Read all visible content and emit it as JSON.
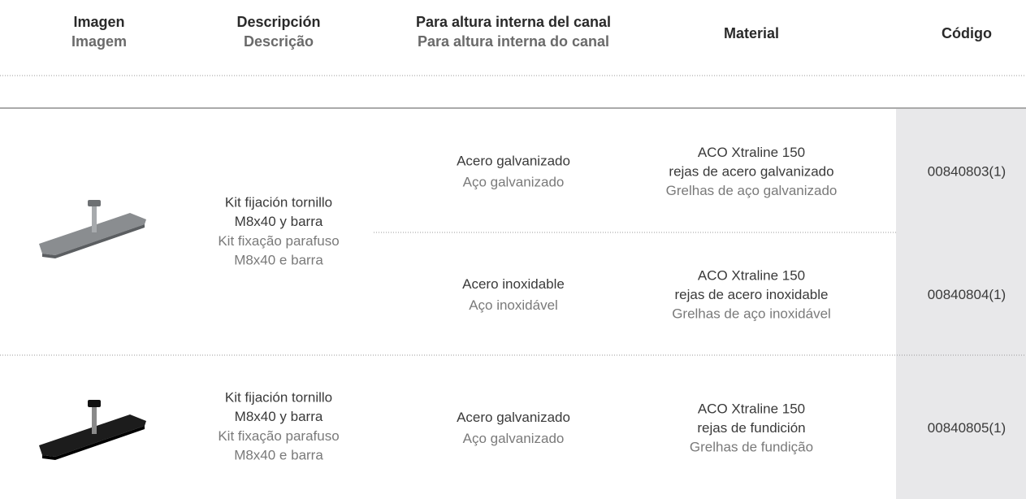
{
  "header": [
    {
      "es": "Imagen",
      "pt": "Imagem"
    },
    {
      "es": "Descripción",
      "pt": "Descrição"
    },
    {
      "es": "Para altura interna del canal",
      "pt": "Para altura interna do canal"
    },
    {
      "es": "Material"
    },
    {
      "es": "Código"
    }
  ],
  "rows": [
    {
      "description": {
        "es": [
          "Kit fijación tornillo",
          "M8x40 y barra"
        ],
        "pt": [
          "Kit fixação parafuso",
          "M8x40 e barra"
        ]
      },
      "items": [
        {
          "height": {
            "es": "Acero galvanizado",
            "pt": "Aço galvanizado"
          },
          "material": {
            "es": [
              "ACO Xtraline 150",
              "rejas de acero galvanizado"
            ],
            "pt": [
              "Grelhas de aço galvanizado"
            ]
          },
          "code": "00840803(1)"
        },
        {
          "height": {
            "es": "Acero inoxidable",
            "pt": "Aço inoxidável"
          },
          "material": {
            "es": [
              "ACO Xtraline 150",
              "rejas de acero inoxidable"
            ],
            "pt": [
              "Grelhas de aço inoxidável"
            ]
          },
          "code": "00840804(1)"
        }
      ]
    },
    {
      "description": {
        "es": [
          "Kit fijación tornillo",
          "M8x40 y barra"
        ],
        "pt": [
          "Kit fixação parafuso",
          "M8x40 e barra"
        ]
      },
      "items": [
        {
          "height": {
            "es": "Acero galvanizado",
            "pt": "Aço galvanizado"
          },
          "material": {
            "es": [
              "ACO Xtraline 150",
              "rejas de fundición"
            ],
            "pt": [
              "Grelhas de fundição"
            ]
          },
          "code": "00840805(1)"
        }
      ]
    }
  ]
}
